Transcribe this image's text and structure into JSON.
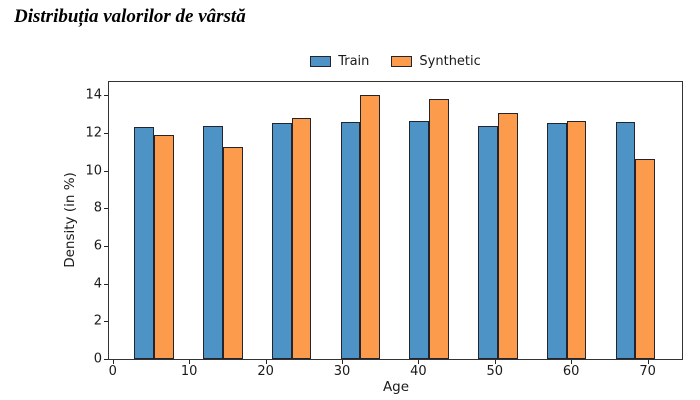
{
  "title": "Distribuția valorilor de vârstă",
  "legend": {
    "items": [
      {
        "label": "Train",
        "color": "#4D93C6"
      },
      {
        "label": "Synthetic",
        "color": "#FD9B4D"
      }
    ]
  },
  "chart_data": {
    "type": "bar",
    "subtype": "grouped-histogram",
    "title": "Distribuția valorilor de vârstă",
    "xlabel": "Age",
    "ylabel": "Density (in %)",
    "x_ticks": [
      0,
      10,
      20,
      30,
      40,
      50,
      60,
      70
    ],
    "y_ticks": [
      0,
      2,
      4,
      6,
      8,
      10,
      12,
      14
    ],
    "xlim": [
      -0.5,
      74.5
    ],
    "ylim": [
      0,
      14.7
    ],
    "grid": false,
    "legend_position": "top-center",
    "group_boundaries": [
      5.4,
      14.4,
      23.4,
      32.4,
      41.4,
      50.4,
      59.4,
      68.4
    ],
    "bar_width": 2.6,
    "bar_edge_color": "#23242e",
    "series": [
      {
        "name": "Train",
        "color": "#4D93C6",
        "values": [
          12.3,
          12.35,
          12.55,
          12.6,
          12.65,
          12.35,
          12.55,
          12.6
        ]
      },
      {
        "name": "Synthetic",
        "color": "#FD9B4D",
        "values": [
          11.9,
          11.25,
          12.8,
          14.0,
          13.8,
          13.05,
          12.65,
          10.6
        ]
      }
    ]
  }
}
